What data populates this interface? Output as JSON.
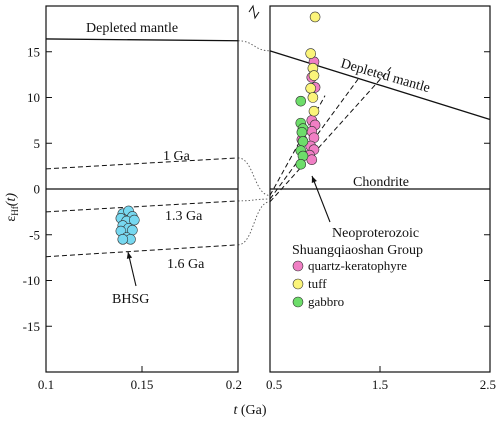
{
  "chart_data": {
    "type": "scatter",
    "ylabel_main": "ε",
    "ylabel_sub": "Hf",
    "ylabel_suffix": "(t)",
    "xlabel_main": "t",
    "xlabel_unit": "(Ga)",
    "ylim": [
      -20,
      20
    ],
    "y_ticks": [
      -15,
      -10,
      -5,
      0,
      5,
      10,
      15
    ],
    "y_tick_labels": [
      "-15",
      "-10",
      "-5",
      "0",
      "5",
      "10",
      "15"
    ],
    "left_panel": {
      "xlim": [
        0.1,
        0.2
      ],
      "x_ticks": [
        0.1,
        0.15,
        0.2
      ],
      "x_tick_labels": [
        "0.1",
        "0.15",
        "0.2"
      ]
    },
    "right_panel": {
      "xlim": [
        0.5,
        2.5
      ],
      "x_ticks": [
        0.5,
        1.5,
        2.5
      ],
      "x_tick_labels": [
        "0.5",
        "1.5",
        "2.5"
      ]
    },
    "annotations": {
      "depleted_mantle_left": "Depleted mantle",
      "depleted_mantle_right": "Depleted mantle",
      "chondrite": "Chondrite",
      "ga_1": "1 Ga",
      "ga_13": "1.3 Ga",
      "ga_16": "1.6 Ga",
      "bhsg": "BHSG",
      "group_line1": "Neoproterozoic",
      "group_line2": "Shuangqiaoshan Group"
    },
    "legend": [
      {
        "label": "quartz-keratophyre",
        "color": "#f07fc4"
      },
      {
        "label": "tuff",
        "color": "#fbf47a"
      },
      {
        "label": "gabbro",
        "color": "#6ddd6a"
      }
    ],
    "series": [
      {
        "name": "BHSG",
        "color": "#77d8f0",
        "points": [
          {
            "x": 0.14,
            "y": -2.7
          },
          {
            "x": 0.143,
            "y": -2.4
          },
          {
            "x": 0.145,
            "y": -3.0
          },
          {
            "x": 0.139,
            "y": -3.2
          },
          {
            "x": 0.142,
            "y": -3.5
          },
          {
            "x": 0.146,
            "y": -3.4
          },
          {
            "x": 0.14,
            "y": -4.0
          },
          {
            "x": 0.143,
            "y": -4.3
          },
          {
            "x": 0.145,
            "y": -4.5
          },
          {
            "x": 0.139,
            "y": -4.6
          },
          {
            "x": 0.142,
            "y": -5.3
          },
          {
            "x": 0.144,
            "y": -5.5
          },
          {
            "x": 0.14,
            "y": -5.5
          }
        ]
      },
      {
        "name": "quartz-keratophyre",
        "color": "#f07fc4",
        "points": [
          {
            "x": 0.9,
            "y": 13.9
          },
          {
            "x": 0.88,
            "y": 12.2
          },
          {
            "x": 0.91,
            "y": 11.1
          },
          {
            "x": 0.88,
            "y": 7.5
          },
          {
            "x": 0.91,
            "y": 7.0
          },
          {
            "x": 0.88,
            "y": 6.3
          },
          {
            "x": 0.9,
            "y": 5.6
          },
          {
            "x": 0.79,
            "y": 5.4
          },
          {
            "x": 0.87,
            "y": 4.7
          },
          {
            "x": 0.9,
            "y": 4.3
          },
          {
            "x": 0.86,
            "y": 3.7
          },
          {
            "x": 0.88,
            "y": 3.2
          }
        ]
      },
      {
        "name": "tuff",
        "color": "#fbf47a",
        "points": [
          {
            "x": 0.91,
            "y": 18.8
          },
          {
            "x": 0.87,
            "y": 14.8
          },
          {
            "x": 0.89,
            "y": 13.2
          },
          {
            "x": 0.9,
            "y": 12.4
          },
          {
            "x": 0.87,
            "y": 11.0
          },
          {
            "x": 0.89,
            "y": 10.0
          },
          {
            "x": 0.9,
            "y": 8.5
          }
        ]
      },
      {
        "name": "gabbro",
        "color": "#6ddd6a",
        "points": [
          {
            "x": 0.78,
            "y": 9.6
          },
          {
            "x": 0.78,
            "y": 7.2
          },
          {
            "x": 0.8,
            "y": 6.6
          },
          {
            "x": 0.79,
            "y": 6.2
          },
          {
            "x": 0.8,
            "y": 5.2
          },
          {
            "x": 0.78,
            "y": 4.2
          },
          {
            "x": 0.8,
            "y": 3.6
          },
          {
            "x": 0.78,
            "y": 2.7
          }
        ]
      }
    ],
    "reference_lines": {
      "depleted_mantle_left": {
        "x": [
          0.1,
          0.2
        ],
        "y": [
          16.4,
          16.2
        ]
      },
      "depleted_mantle_right": {
        "x": [
          0.5,
          2.5
        ],
        "y": [
          15.1,
          7.6
        ]
      },
      "chondrite": {
        "y": 0
      },
      "evolution_1ga_left": {
        "x": [
          0.1,
          0.2
        ],
        "y": [
          2.2,
          3.4
        ]
      },
      "evolution_13ga_left": {
        "x": [
          0.1,
          0.2
        ],
        "y": [
          -2.5,
          -1.3
        ]
      },
      "evolution_16ga_left": {
        "x": [
          0.1,
          0.2
        ],
        "y": [
          -7.4,
          -6.1
        ]
      },
      "evolution_1ga_right": {
        "x": [
          0.5,
          1.0
        ],
        "y": [
          -0.7,
          10.2
        ]
      },
      "evolution_13ga_right": {
        "x": [
          0.5,
          1.3
        ],
        "y": [
          -1.1,
          12.0
        ]
      },
      "evolution_16ga_right": {
        "x": [
          0.5,
          1.6
        ],
        "y": [
          -1.4,
          13.3
        ]
      }
    }
  }
}
